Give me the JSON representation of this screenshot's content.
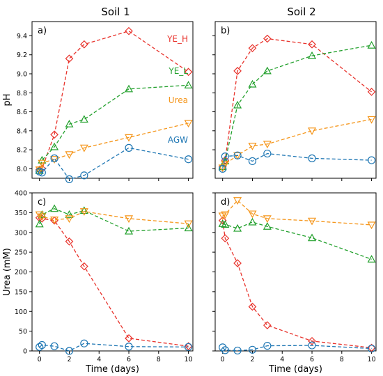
{
  "figure": {
    "column_titles": [
      "Soil 1",
      "Soil 2"
    ],
    "colors": {
      "YE_H": "#e8322b",
      "YE_L": "#22a02c",
      "Urea": "#f5961b",
      "AGW": "#1f77b4"
    }
  },
  "chart_data": [
    {
      "type": "line",
      "panel": "a)",
      "column": "Soil 1",
      "xlabel": "",
      "ylabel": "pH",
      "xlim": [
        -0.5,
        10.3
      ],
      "ylim": [
        7.9,
        9.55
      ],
      "xticks": [
        0,
        2,
        4,
        6,
        8,
        10
      ],
      "yticks": [
        8.0,
        8.2,
        8.4,
        8.6,
        8.8,
        9.0,
        9.2,
        9.4
      ],
      "ytick_labels": [
        "8.0",
        "8.2",
        "8.4",
        "8.6",
        "8.8",
        "9.0",
        "9.2",
        "9.4"
      ],
      "show_xtick_labels": false,
      "show_ytick_labels": true,
      "legend_labels": [
        "YE_H",
        "YE_L",
        "Urea",
        "AGW"
      ],
      "series": [
        {
          "name": "YE_H",
          "marker": "diamond",
          "x": [
            0,
            0.17,
            1,
            2,
            3,
            6,
            10
          ],
          "y": [
            7.99,
            8.0,
            8.36,
            9.16,
            9.31,
            9.45,
            9.02
          ]
        },
        {
          "name": "YE_L",
          "marker": "triangle-up",
          "x": [
            0,
            0.17,
            1,
            2,
            3,
            6,
            10
          ],
          "y": [
            7.98,
            8.09,
            8.23,
            8.47,
            8.52,
            8.84,
            8.88
          ]
        },
        {
          "name": "Urea",
          "marker": "triangle-down",
          "x": [
            0,
            0.17,
            1,
            2,
            3,
            6,
            10
          ],
          "y": [
            7.99,
            8.06,
            8.1,
            8.15,
            8.22,
            8.33,
            8.48
          ]
        },
        {
          "name": "AGW",
          "marker": "circle",
          "x": [
            0,
            0.17,
            1,
            2,
            3,
            6,
            10
          ],
          "y": [
            7.97,
            7.96,
            8.11,
            7.89,
            7.93,
            8.22,
            8.1
          ]
        }
      ]
    },
    {
      "type": "line",
      "panel": "b)",
      "column": "Soil 2",
      "xlabel": "",
      "ylabel": "",
      "xlim": [
        -0.5,
        10.3
      ],
      "ylim": [
        7.9,
        9.55
      ],
      "xticks": [
        0,
        2,
        4,
        6,
        8,
        10
      ],
      "yticks": [
        8.0,
        8.2,
        8.4,
        8.6,
        8.8,
        9.0,
        9.2,
        9.4
      ],
      "ytick_labels": [
        "8.0",
        "8.2",
        "8.4",
        "8.6",
        "8.8",
        "9.0",
        "9.2",
        "9.4"
      ],
      "show_xtick_labels": false,
      "show_ytick_labels": false,
      "legend_labels": [],
      "series": [
        {
          "name": "YE_H",
          "marker": "diamond",
          "x": [
            0,
            0.17,
            1,
            2,
            3,
            6,
            10
          ],
          "y": [
            8.02,
            8.09,
            9.03,
            9.27,
            9.37,
            9.31,
            8.81
          ]
        },
        {
          "name": "YE_L",
          "marker": "triangle-up",
          "x": [
            0,
            0.17,
            1,
            2,
            3,
            6,
            10
          ],
          "y": [
            8.02,
            8.08,
            8.67,
            8.89,
            9.03,
            9.19,
            9.3
          ]
        },
        {
          "name": "Urea",
          "marker": "triangle-down",
          "x": [
            0,
            0.17,
            1,
            2,
            3,
            6,
            10
          ],
          "y": [
            8.01,
            8.05,
            8.14,
            8.24,
            8.26,
            8.4,
            8.52
          ]
        },
        {
          "name": "AGW",
          "marker": "circle",
          "x": [
            0,
            0.17,
            1,
            2,
            3,
            6,
            10
          ],
          "y": [
            8.0,
            8.13,
            8.14,
            8.08,
            8.16,
            8.11,
            8.09
          ]
        }
      ]
    },
    {
      "type": "line",
      "panel": "c)",
      "column": "Soil 1",
      "xlabel": "Time (days)",
      "ylabel": "Urea (mM)",
      "xlim": [
        -0.5,
        10.3
      ],
      "ylim": [
        0,
        400
      ],
      "xticks": [
        0,
        2,
        4,
        6,
        8,
        10
      ],
      "yticks": [
        0,
        50,
        100,
        150,
        200,
        250,
        300,
        350,
        400
      ],
      "ytick_labels": [
        "0",
        "50",
        "100",
        "150",
        "200",
        "250",
        "300",
        "350",
        "400"
      ],
      "show_xtick_labels": true,
      "show_ytick_labels": true,
      "legend_labels": [],
      "series": [
        {
          "name": "YE_H",
          "marker": "diamond",
          "x": [
            0,
            0.17,
            1,
            2,
            3,
            6,
            10
          ],
          "y": [
            337,
            335,
            330,
            277,
            214,
            32,
            12
          ]
        },
        {
          "name": "YE_L",
          "marker": "triangle-up",
          "x": [
            0,
            0.17,
            1,
            2,
            3,
            6,
            10
          ],
          "y": [
            321,
            345,
            360,
            345,
            355,
            303,
            311
          ]
        },
        {
          "name": "Urea",
          "marker": "triangle-down",
          "x": [
            0,
            0.17,
            1,
            2,
            3,
            6,
            10
          ],
          "y": [
            345,
            340,
            332,
            335,
            353,
            335,
            322
          ]
        },
        {
          "name": "AGW",
          "marker": "circle",
          "x": [
            0,
            0.17,
            1,
            2,
            3,
            6,
            10
          ],
          "y": [
            10,
            15,
            12,
            0,
            19,
            11,
            10
          ]
        }
      ]
    },
    {
      "type": "line",
      "panel": "d)",
      "column": "Soil 2",
      "xlabel": "Time (days)",
      "ylabel": "",
      "xlim": [
        -0.5,
        10.3
      ],
      "ylim": [
        0,
        400
      ],
      "xticks": [
        0,
        2,
        4,
        6,
        8,
        10
      ],
      "yticks": [
        0,
        50,
        100,
        150,
        200,
        250,
        300,
        350,
        400
      ],
      "ytick_labels": [
        "0",
        "50",
        "100",
        "150",
        "200",
        "250",
        "300",
        "350",
        "400"
      ],
      "show_xtick_labels": true,
      "show_ytick_labels": false,
      "legend_labels": [],
      "series": [
        {
          "name": "YE_H",
          "marker": "diamond",
          "x": [
            0,
            0.17,
            1,
            2,
            3,
            6,
            10
          ],
          "y": [
            330,
            285,
            222,
            112,
            65,
            25,
            8
          ]
        },
        {
          "name": "YE_L",
          "marker": "triangle-up",
          "x": [
            0,
            0.17,
            1,
            2,
            3,
            6,
            10
          ],
          "y": [
            322,
            320,
            310,
            326,
            315,
            286,
            232
          ]
        },
        {
          "name": "Urea",
          "marker": "triangle-down",
          "x": [
            0,
            0.17,
            1,
            2,
            3,
            6,
            10
          ],
          "y": [
            342,
            345,
            381,
            347,
            335,
            329,
            319
          ]
        },
        {
          "name": "AGW",
          "marker": "circle",
          "x": [
            0,
            0.17,
            1,
            2,
            3,
            6,
            10
          ],
          "y": [
            9,
            2,
            1,
            3,
            13,
            14,
            6
          ]
        }
      ]
    }
  ]
}
